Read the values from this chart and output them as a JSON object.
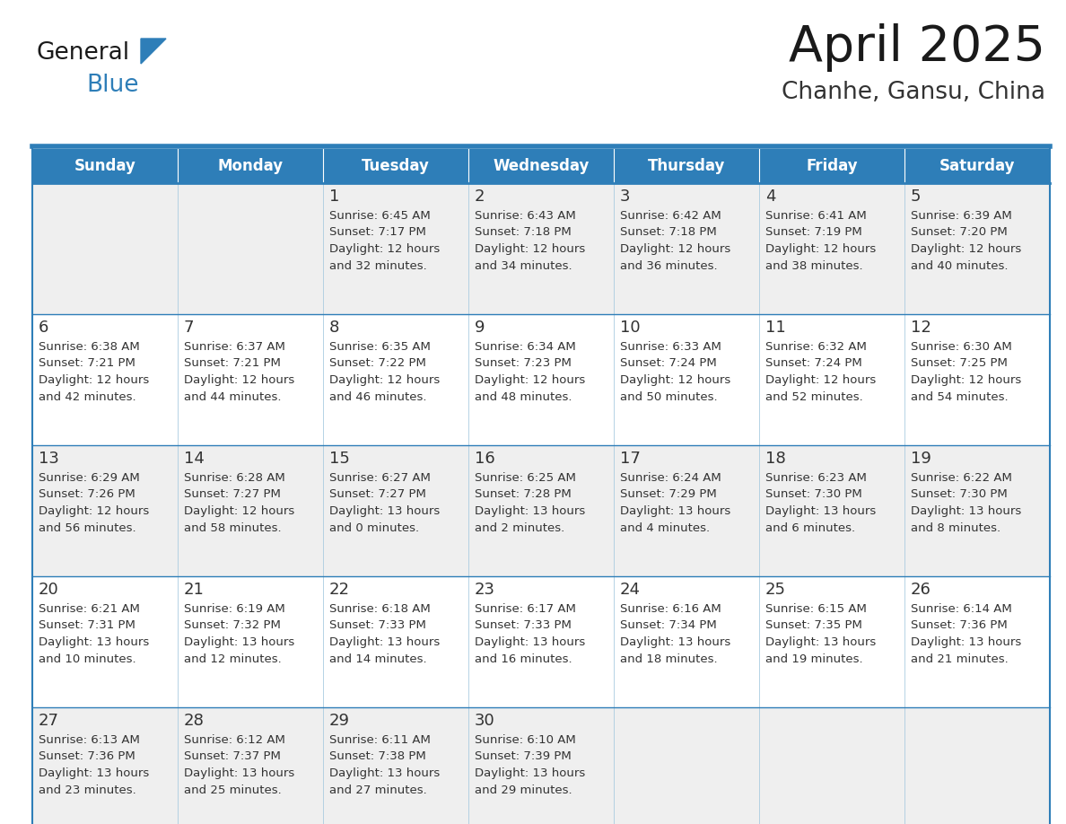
{
  "title": "April 2025",
  "subtitle": "Chanhe, Gansu, China",
  "days_of_week": [
    "Sunday",
    "Monday",
    "Tuesday",
    "Wednesday",
    "Thursday",
    "Friday",
    "Saturday"
  ],
  "header_bg": "#2E7EB8",
  "header_text_color": "#FFFFFF",
  "row_bg_even": "#EFEFEF",
  "row_bg_odd": "#FFFFFF",
  "cell_text_color": "#333333",
  "border_color": "#2E7EB8",
  "title_color": "#1a1a1a",
  "subtitle_color": "#333333",
  "logo_general_color": "#1a1a1a",
  "logo_blue_color": "#2E7EB8",
  "weeks": [
    [
      {
        "day": null,
        "sunrise": null,
        "sunset": null,
        "daylight": null
      },
      {
        "day": null,
        "sunrise": null,
        "sunset": null,
        "daylight": null
      },
      {
        "day": 1,
        "sunrise": "6:45 AM",
        "sunset": "7:17 PM",
        "daylight": "12 hours\nand 32 minutes."
      },
      {
        "day": 2,
        "sunrise": "6:43 AM",
        "sunset": "7:18 PM",
        "daylight": "12 hours\nand 34 minutes."
      },
      {
        "day": 3,
        "sunrise": "6:42 AM",
        "sunset": "7:18 PM",
        "daylight": "12 hours\nand 36 minutes."
      },
      {
        "day": 4,
        "sunrise": "6:41 AM",
        "sunset": "7:19 PM",
        "daylight": "12 hours\nand 38 minutes."
      },
      {
        "day": 5,
        "sunrise": "6:39 AM",
        "sunset": "7:20 PM",
        "daylight": "12 hours\nand 40 minutes."
      }
    ],
    [
      {
        "day": 6,
        "sunrise": "6:38 AM",
        "sunset": "7:21 PM",
        "daylight": "12 hours\nand 42 minutes."
      },
      {
        "day": 7,
        "sunrise": "6:37 AM",
        "sunset": "7:21 PM",
        "daylight": "12 hours\nand 44 minutes."
      },
      {
        "day": 8,
        "sunrise": "6:35 AM",
        "sunset": "7:22 PM",
        "daylight": "12 hours\nand 46 minutes."
      },
      {
        "day": 9,
        "sunrise": "6:34 AM",
        "sunset": "7:23 PM",
        "daylight": "12 hours\nand 48 minutes."
      },
      {
        "day": 10,
        "sunrise": "6:33 AM",
        "sunset": "7:24 PM",
        "daylight": "12 hours\nand 50 minutes."
      },
      {
        "day": 11,
        "sunrise": "6:32 AM",
        "sunset": "7:24 PM",
        "daylight": "12 hours\nand 52 minutes."
      },
      {
        "day": 12,
        "sunrise": "6:30 AM",
        "sunset": "7:25 PM",
        "daylight": "12 hours\nand 54 minutes."
      }
    ],
    [
      {
        "day": 13,
        "sunrise": "6:29 AM",
        "sunset": "7:26 PM",
        "daylight": "12 hours\nand 56 minutes."
      },
      {
        "day": 14,
        "sunrise": "6:28 AM",
        "sunset": "7:27 PM",
        "daylight": "12 hours\nand 58 minutes."
      },
      {
        "day": 15,
        "sunrise": "6:27 AM",
        "sunset": "7:27 PM",
        "daylight": "13 hours\nand 0 minutes."
      },
      {
        "day": 16,
        "sunrise": "6:25 AM",
        "sunset": "7:28 PM",
        "daylight": "13 hours\nand 2 minutes."
      },
      {
        "day": 17,
        "sunrise": "6:24 AM",
        "sunset": "7:29 PM",
        "daylight": "13 hours\nand 4 minutes."
      },
      {
        "day": 18,
        "sunrise": "6:23 AM",
        "sunset": "7:30 PM",
        "daylight": "13 hours\nand 6 minutes."
      },
      {
        "day": 19,
        "sunrise": "6:22 AM",
        "sunset": "7:30 PM",
        "daylight": "13 hours\nand 8 minutes."
      }
    ],
    [
      {
        "day": 20,
        "sunrise": "6:21 AM",
        "sunset": "7:31 PM",
        "daylight": "13 hours\nand 10 minutes."
      },
      {
        "day": 21,
        "sunrise": "6:19 AM",
        "sunset": "7:32 PM",
        "daylight": "13 hours\nand 12 minutes."
      },
      {
        "day": 22,
        "sunrise": "6:18 AM",
        "sunset": "7:33 PM",
        "daylight": "13 hours\nand 14 minutes."
      },
      {
        "day": 23,
        "sunrise": "6:17 AM",
        "sunset": "7:33 PM",
        "daylight": "13 hours\nand 16 minutes."
      },
      {
        "day": 24,
        "sunrise": "6:16 AM",
        "sunset": "7:34 PM",
        "daylight": "13 hours\nand 18 minutes."
      },
      {
        "day": 25,
        "sunrise": "6:15 AM",
        "sunset": "7:35 PM",
        "daylight": "13 hours\nand 19 minutes."
      },
      {
        "day": 26,
        "sunrise": "6:14 AM",
        "sunset": "7:36 PM",
        "daylight": "13 hours\nand 21 minutes."
      }
    ],
    [
      {
        "day": 27,
        "sunrise": "6:13 AM",
        "sunset": "7:36 PM",
        "daylight": "13 hours\nand 23 minutes."
      },
      {
        "day": 28,
        "sunrise": "6:12 AM",
        "sunset": "7:37 PM",
        "daylight": "13 hours\nand 25 minutes."
      },
      {
        "day": 29,
        "sunrise": "6:11 AM",
        "sunset": "7:38 PM",
        "daylight": "13 hours\nand 27 minutes."
      },
      {
        "day": 30,
        "sunrise": "6:10 AM",
        "sunset": "7:39 PM",
        "daylight": "13 hours\nand 29 minutes."
      },
      {
        "day": null,
        "sunrise": null,
        "sunset": null,
        "daylight": null
      },
      {
        "day": null,
        "sunrise": null,
        "sunset": null,
        "daylight": null
      },
      {
        "day": null,
        "sunrise": null,
        "sunset": null,
        "daylight": null
      }
    ]
  ]
}
